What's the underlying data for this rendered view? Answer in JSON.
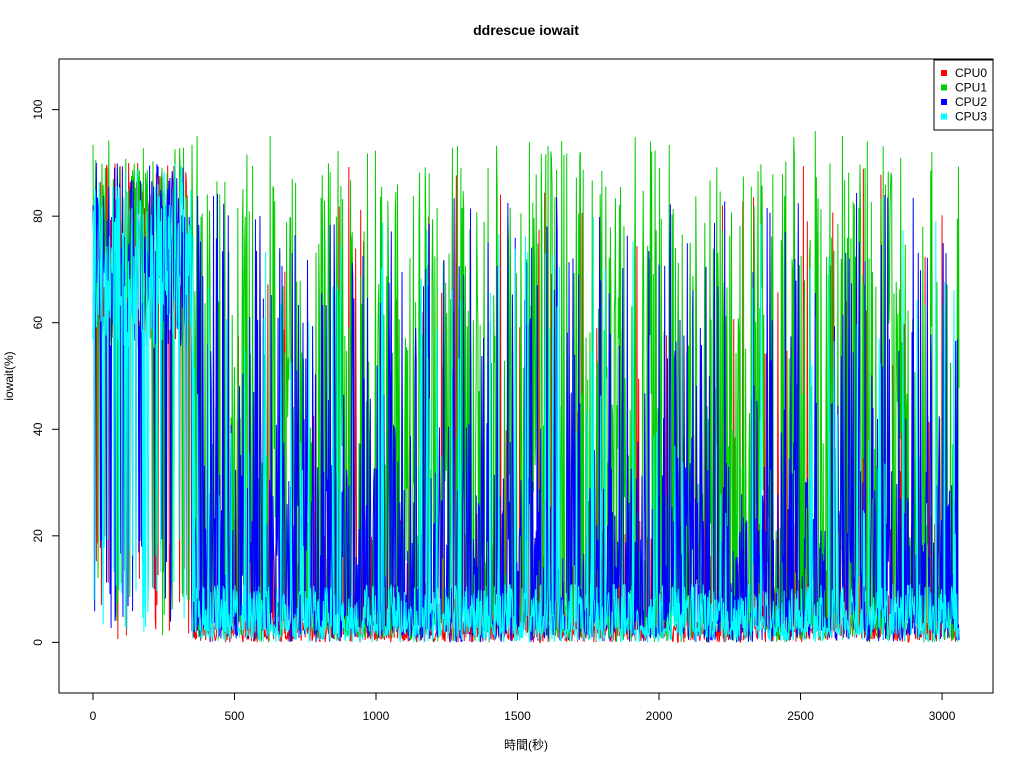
{
  "chart_data": {
    "type": "line",
    "title": "ddrescue iowait",
    "xlabel": "時間(秒)",
    "ylabel": "iowait(%)",
    "xlim": [
      -120,
      3180
    ],
    "ylim": [
      -9.5,
      109.5
    ],
    "x_ticks": [
      0,
      500,
      1000,
      1500,
      2000,
      2500,
      3000
    ],
    "x_tick_labels": [
      "0",
      "500",
      "1000",
      "1500",
      "2000",
      "2500",
      "3000"
    ],
    "y_ticks": [
      0,
      20,
      40,
      60,
      80,
      100
    ],
    "y_tick_labels": [
      "0",
      "20",
      "40",
      "60",
      "80",
      "100"
    ],
    "grid": false,
    "legend_position": "top-right",
    "x_range": [
      0,
      3060
    ],
    "x_step": 2,
    "series": [
      {
        "name": "CPU0",
        "color": "#ff0000"
      },
      {
        "name": "CPU1",
        "color": "#00cd00"
      },
      {
        "name": "CPU2",
        "color": "#0000ff"
      },
      {
        "name": "CPU3",
        "color": "#00ffff"
      }
    ]
  }
}
